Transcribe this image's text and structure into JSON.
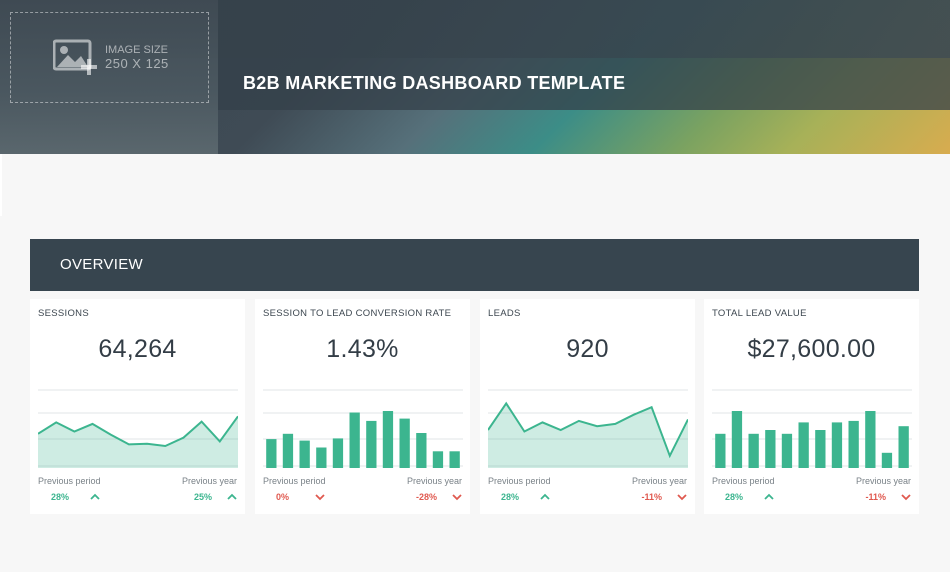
{
  "header": {
    "logo_placeholder": {
      "line1": "IMAGE SIZE",
      "line2": "250 X 125"
    },
    "title": "B2B MARKETING DASHBOARD TEMPLATE"
  },
  "section": {
    "title": "OVERVIEW"
  },
  "colors": {
    "accent": "#3cb58f",
    "negative": "#e0594f",
    "bar_dark": "#37454f"
  },
  "cards": [
    {
      "label": "SESSIONS",
      "value": "64,264",
      "chart_type": "area",
      "series": [
        45,
        60,
        48,
        58,
        44,
        31,
        32,
        29,
        40,
        61,
        35,
        68
      ],
      "prev_label": "Previous period",
      "prev_value": "28%",
      "prev_trend": "up",
      "year_label": "Previous year",
      "year_value": "25%",
      "year_trend": "up"
    },
    {
      "label": "SESSION TO LEAD CONVERSION RATE",
      "value": "1.43%",
      "chart_type": "bar",
      "series": [
        38,
        45,
        36,
        27,
        39,
        73,
        62,
        75,
        65,
        46,
        22,
        22
      ],
      "prev_label": "Previous period",
      "prev_value": "0%",
      "prev_trend": "down",
      "year_label": "Previous year",
      "year_value": "-28%",
      "year_trend": "down"
    },
    {
      "label": "LEADS",
      "value": "920",
      "chart_type": "area",
      "series": [
        50,
        85,
        48,
        60,
        50,
        62,
        55,
        58,
        70,
        80,
        16,
        64
      ],
      "prev_label": "Previous period",
      "prev_value": "28%",
      "prev_trend": "up",
      "year_label": "Previous year",
      "year_value": "-11%",
      "year_trend": "down"
    },
    {
      "label": "TOTAL LEAD VALUE",
      "value": "$27,600.00",
      "chart_type": "bar",
      "series": [
        45,
        75,
        45,
        50,
        45,
        60,
        50,
        60,
        62,
        75,
        20,
        55
      ],
      "prev_label": "Previous period",
      "prev_value": "28%",
      "prev_trend": "up",
      "year_label": "Previous year",
      "year_value": "-11%",
      "year_trend": "down"
    }
  ]
}
